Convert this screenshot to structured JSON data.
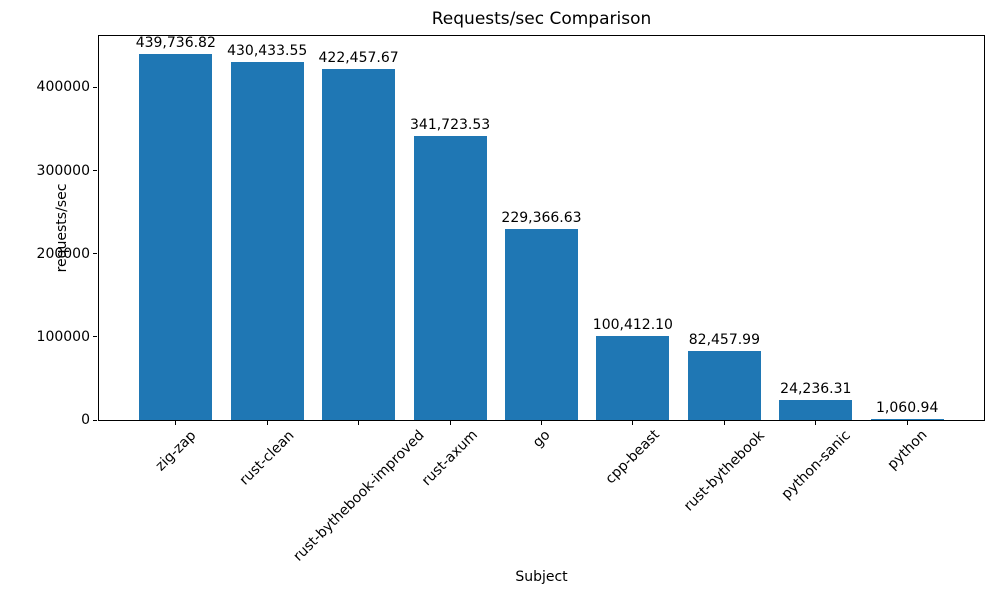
{
  "chart_data": {
    "type": "bar",
    "title": "Requests/sec Comparison",
    "xlabel": "Subject",
    "ylabel": "requests/sec",
    "categories": [
      "zig-zap",
      "rust-clean",
      "rust-bythebook-improved",
      "rust-axum",
      "go",
      "cpp-beast",
      "rust-bythebook",
      "python-sanic",
      "python"
    ],
    "values": [
      439736.82,
      430433.55,
      422457.67,
      341723.53,
      229366.63,
      100412.1,
      82457.99,
      24236.31,
      1060.94
    ],
    "value_labels": [
      "439,736.82",
      "430,433.55",
      "422,457.67",
      "341,723.53",
      "229,366.63",
      "100,412.10",
      "82,457.99",
      "24,236.31",
      "1,060.94"
    ],
    "yticks": [
      0,
      100000,
      200000,
      300000,
      400000
    ],
    "ytick_labels": [
      "0",
      "100000",
      "200000",
      "300000",
      "400000"
    ],
    "ylim": [
      0,
      461723.66
    ],
    "bar_width_fraction": 0.8,
    "bar_color": "#1f77b4",
    "axis_color": "#000000",
    "text_color": "#000000",
    "background_color": "#ffffff",
    "grid": false,
    "legend": null
  }
}
